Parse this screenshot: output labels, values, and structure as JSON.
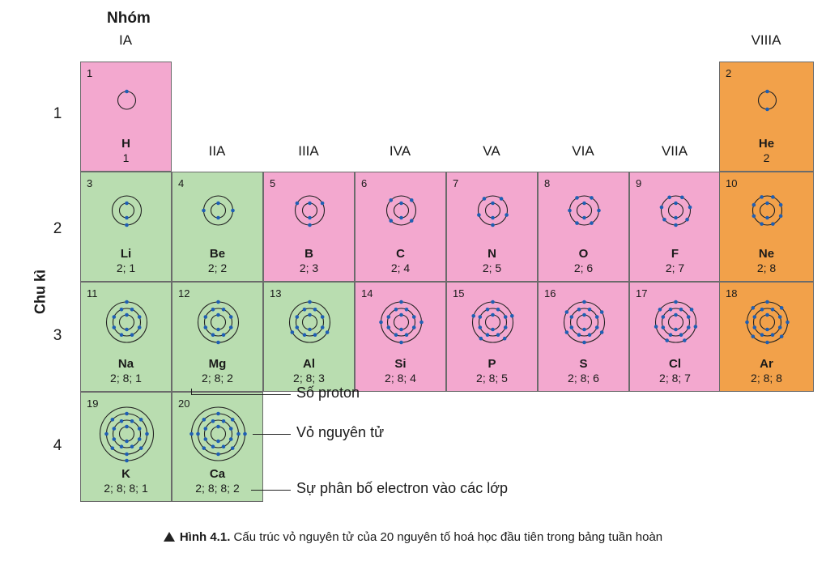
{
  "header": {
    "group_word": "Nhóm",
    "period_axis": "Chu kì"
  },
  "groups": [
    "IA",
    "IIA",
    "IIIA",
    "IVA",
    "VA",
    "VIA",
    "VIIA",
    "VIIIA"
  ],
  "periods": [
    "1",
    "2",
    "3",
    "4"
  ],
  "colors": {
    "s_block": "#b9ddb0",
    "p_block": "#f3a8cf",
    "noble": "#f2a14a",
    "electron": "#1f5fb4"
  },
  "elements": [
    {
      "z": "1",
      "symbol": "H",
      "config": "1",
      "group": 1,
      "period": 1,
      "color": "pink"
    },
    {
      "z": "2",
      "symbol": "He",
      "config": "2",
      "group": 8,
      "period": 1,
      "color": "orange"
    },
    {
      "z": "3",
      "symbol": "Li",
      "config": "2; 1",
      "group": 1,
      "period": 2,
      "color": "green"
    },
    {
      "z": "4",
      "symbol": "Be",
      "config": "2; 2",
      "group": 2,
      "period": 2,
      "color": "green"
    },
    {
      "z": "5",
      "symbol": "B",
      "config": "2; 3",
      "group": 3,
      "period": 2,
      "color": "pink"
    },
    {
      "z": "6",
      "symbol": "C",
      "config": "2; 4",
      "group": 4,
      "period": 2,
      "color": "pink"
    },
    {
      "z": "7",
      "symbol": "N",
      "config": "2; 5",
      "group": 5,
      "period": 2,
      "color": "pink"
    },
    {
      "z": "8",
      "symbol": "O",
      "config": "2; 6",
      "group": 6,
      "period": 2,
      "color": "pink"
    },
    {
      "z": "9",
      "symbol": "F",
      "config": "2; 7",
      "group": 7,
      "period": 2,
      "color": "pink"
    },
    {
      "z": "10",
      "symbol": "Ne",
      "config": "2; 8",
      "group": 8,
      "period": 2,
      "color": "orange"
    },
    {
      "z": "11",
      "symbol": "Na",
      "config": "2; 8; 1",
      "group": 1,
      "period": 3,
      "color": "green"
    },
    {
      "z": "12",
      "symbol": "Mg",
      "config": "2; 8; 2",
      "group": 2,
      "period": 3,
      "color": "green"
    },
    {
      "z": "13",
      "symbol": "Al",
      "config": "2; 8; 3",
      "group": 3,
      "period": 3,
      "color": "green"
    },
    {
      "z": "14",
      "symbol": "Si",
      "config": "2; 8; 4",
      "group": 4,
      "period": 3,
      "color": "pink"
    },
    {
      "z": "15",
      "symbol": "P",
      "config": "2; 8; 5",
      "group": 5,
      "period": 3,
      "color": "pink"
    },
    {
      "z": "16",
      "symbol": "S",
      "config": "2; 8; 6",
      "group": 6,
      "period": 3,
      "color": "pink"
    },
    {
      "z": "17",
      "symbol": "Cl",
      "config": "2; 8; 7",
      "group": 7,
      "period": 3,
      "color": "pink"
    },
    {
      "z": "18",
      "symbol": "Ar",
      "config": "2; 8; 8",
      "group": 8,
      "period": 3,
      "color": "orange"
    },
    {
      "z": "19",
      "symbol": "K",
      "config": "2; 8; 8; 1",
      "group": 1,
      "period": 4,
      "color": "green"
    },
    {
      "z": "20",
      "symbol": "Ca",
      "config": "2; 8; 8; 2",
      "group": 2,
      "period": 4,
      "color": "green"
    }
  ],
  "legend": {
    "proton": "Số proton",
    "shell": "Vỏ nguyên tử",
    "distribution": "Sự phân bố electron vào các lớp"
  },
  "caption": {
    "label": "Hình 4.1.",
    "text": " Cấu trúc vỏ nguyên tử của 20 nguyên tố hoá học đầu tiên trong bảng tuần hoàn"
  }
}
